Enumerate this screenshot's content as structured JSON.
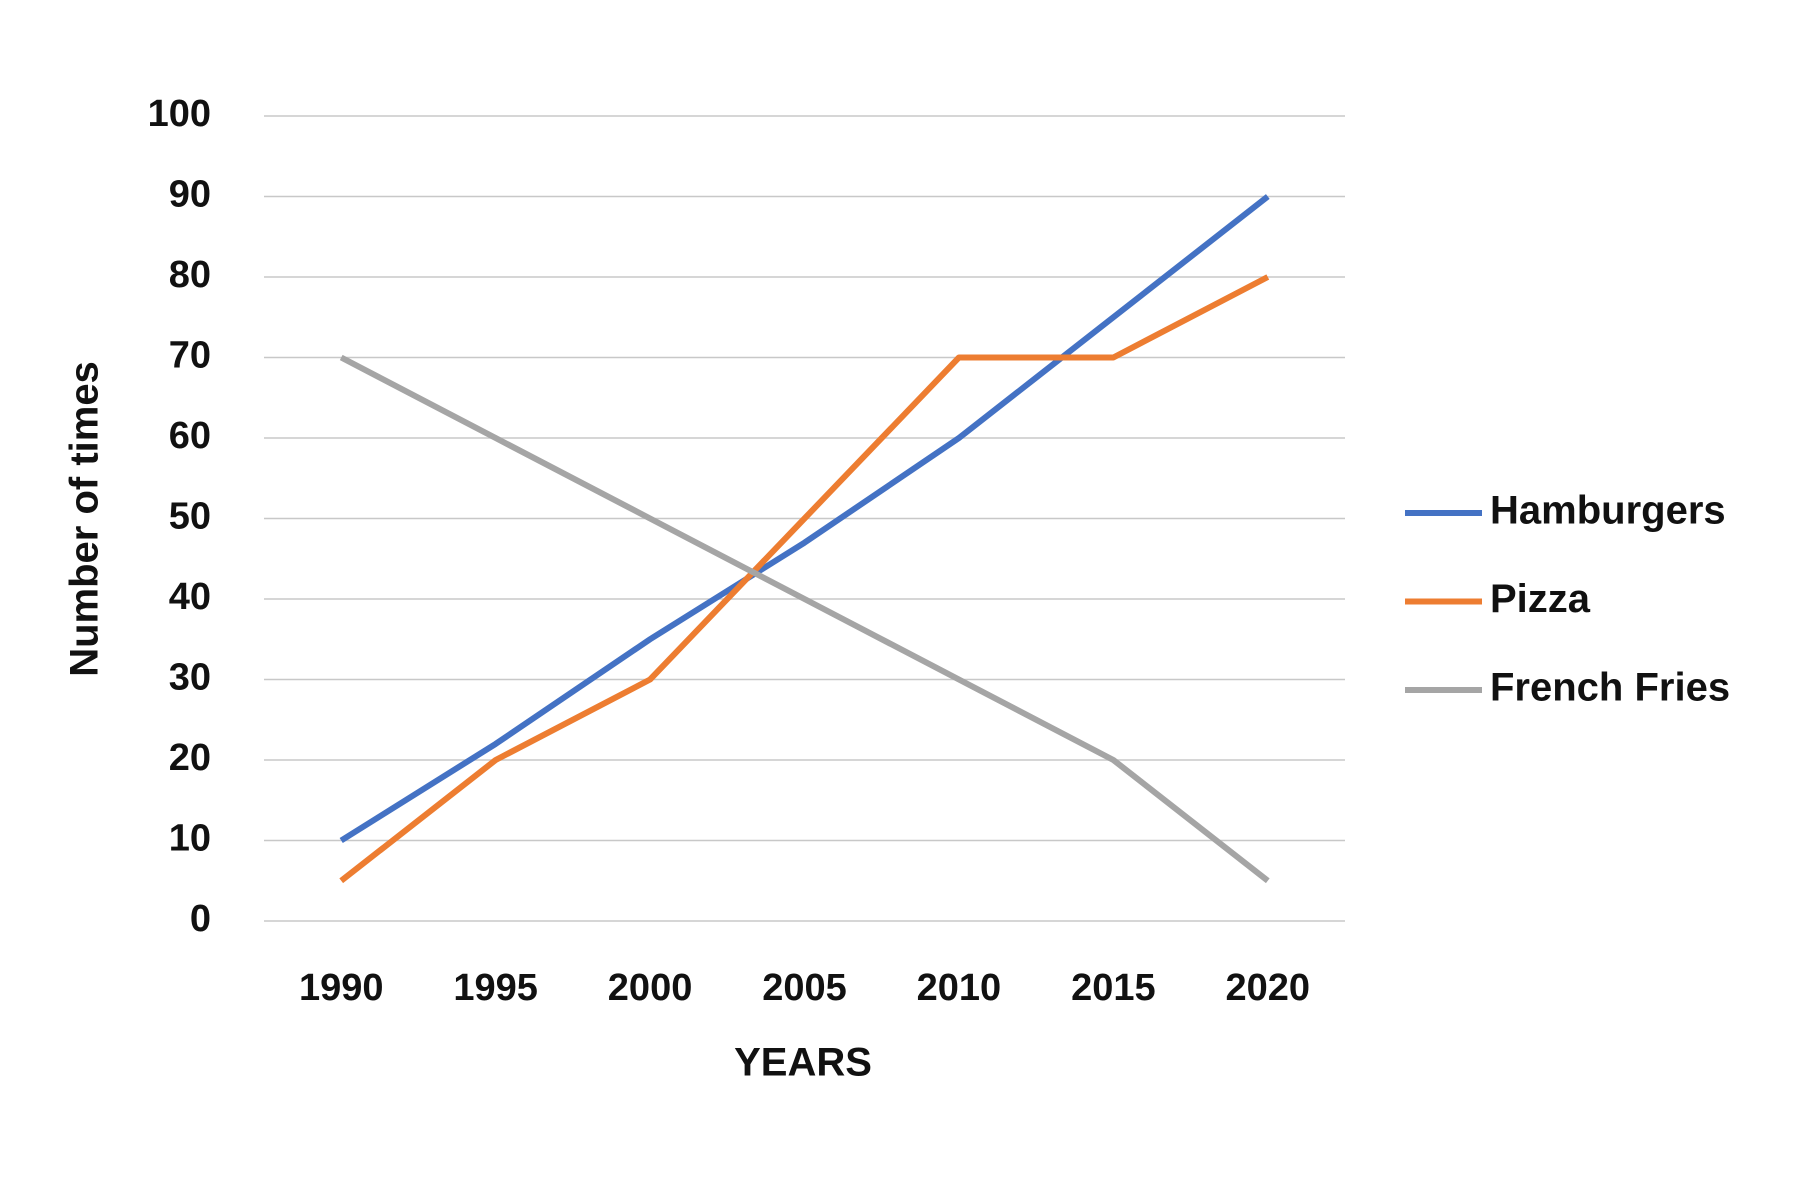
{
  "chart_data": {
    "type": "line",
    "x_label": "YEARS",
    "y_label": "Number of times",
    "categories": [
      "1990",
      "1995",
      "2000",
      "2005",
      "2010",
      "2015",
      "2020"
    ],
    "series": [
      {
        "name": "Hamburgers",
        "color": "#4472c4",
        "values": [
          10,
          22,
          35,
          47,
          60,
          75,
          90
        ]
      },
      {
        "name": "Pizza",
        "color": "#ed7d31",
        "values": [
          5,
          20,
          30,
          50,
          70,
          70,
          80
        ]
      },
      {
        "name": "French Fries",
        "color": "#a5a5a5",
        "values": [
          70,
          60,
          50,
          40,
          30,
          20,
          5
        ]
      }
    ],
    "ylim": [
      0,
      100
    ],
    "yticks": [
      0,
      10,
      20,
      30,
      40,
      50,
      60,
      70,
      80,
      90,
      100
    ],
    "grid": true,
    "legend": "right"
  }
}
